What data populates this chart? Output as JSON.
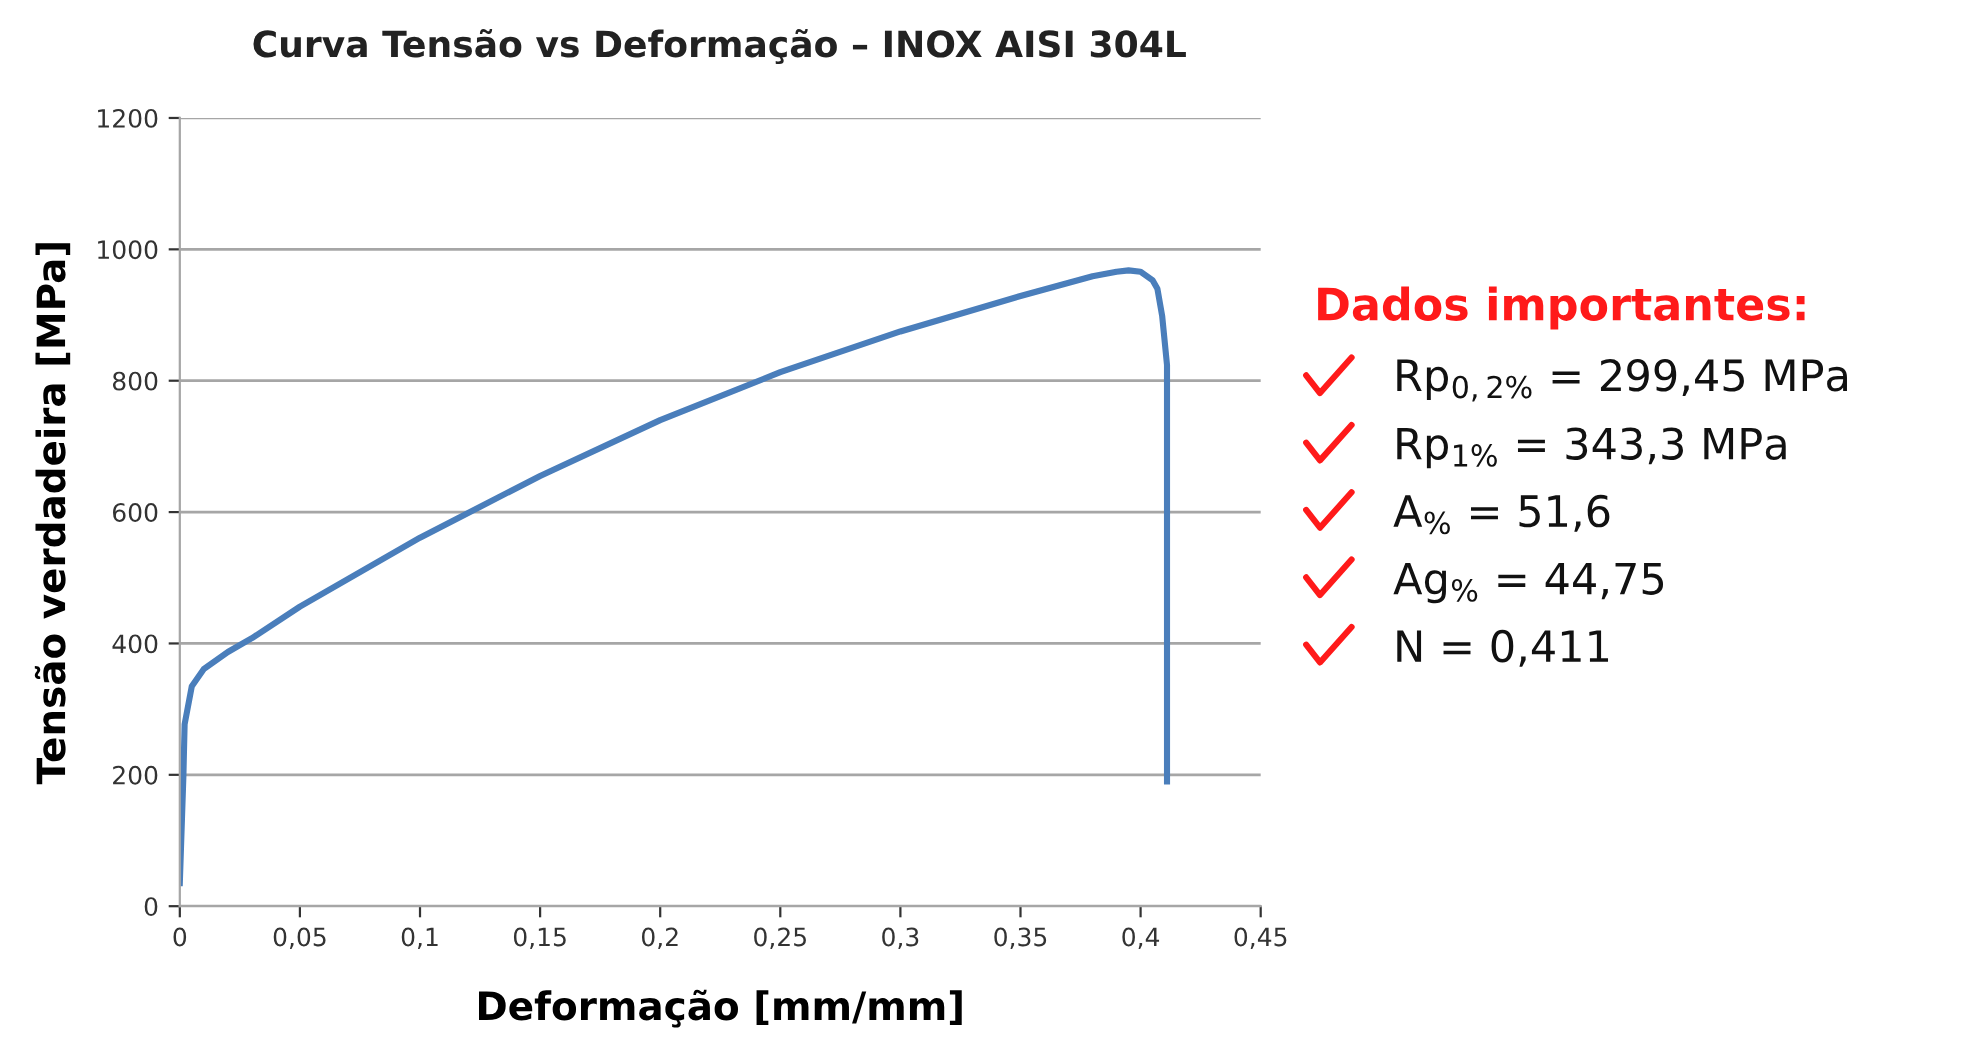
{
  "chart_data": {
    "type": "line",
    "title": "Curva Tensão vs Deformação – INOX AISI 304L",
    "xlabel": "Deformação [mm/mm]",
    "ylabel": "Tensão verdadeira [MPa]",
    "x": [
      0,
      0.0015,
      0.002,
      0.005,
      0.01,
      0.02,
      0.03,
      0.05,
      0.1,
      0.15,
      0.2,
      0.25,
      0.3,
      0.35,
      0.38,
      0.39,
      0.395,
      0.4,
      0.405,
      0.407,
      0.409,
      0.411,
      0.411
    ],
    "series": [
      {
        "color": "#4a7ebb",
        "values": [
          35,
          200,
          277,
          335,
          361,
          387,
          408,
          456,
          561,
          655,
          740,
          813,
          875,
          929,
          959,
          966,
          968,
          966,
          953,
          940,
          898,
          824,
          190
        ]
      }
    ],
    "xlim": [
      0,
      0.45
    ],
    "ylim": [
      0,
      1200
    ],
    "xticks": [
      0,
      {
        "value": 0.05,
        "label": "0,05"
      },
      {
        "value": 0.1,
        "label": "0,1"
      },
      {
        "value": 0.15,
        "label": "0,15"
      },
      {
        "value": 0.2,
        "label": "0,2"
      },
      {
        "value": 0.25,
        "label": "0,25"
      },
      {
        "value": 0.3,
        "label": "0,3"
      },
      {
        "value": 0.35,
        "label": "0,35"
      },
      {
        "value": 0.4,
        "label": "0,4"
      },
      {
        "value": 0.45,
        "label": "0,45"
      }
    ],
    "yticks": [
      0,
      200,
      400,
      600,
      800,
      1000,
      1200
    ],
    "grid": "y",
    "marker": "none",
    "line_style": "solid",
    "legend": false,
    "annotations": [
      "Dados importantes:",
      "Rp$_{0,2%}$ = 299,45 MPa",
      "Rp$_{1%}$ = 343,3 MPa",
      "A$_{%}$ = 51,6",
      "Ag$_{%}$ = 44,75",
      "N = 0,411"
    ]
  }
}
